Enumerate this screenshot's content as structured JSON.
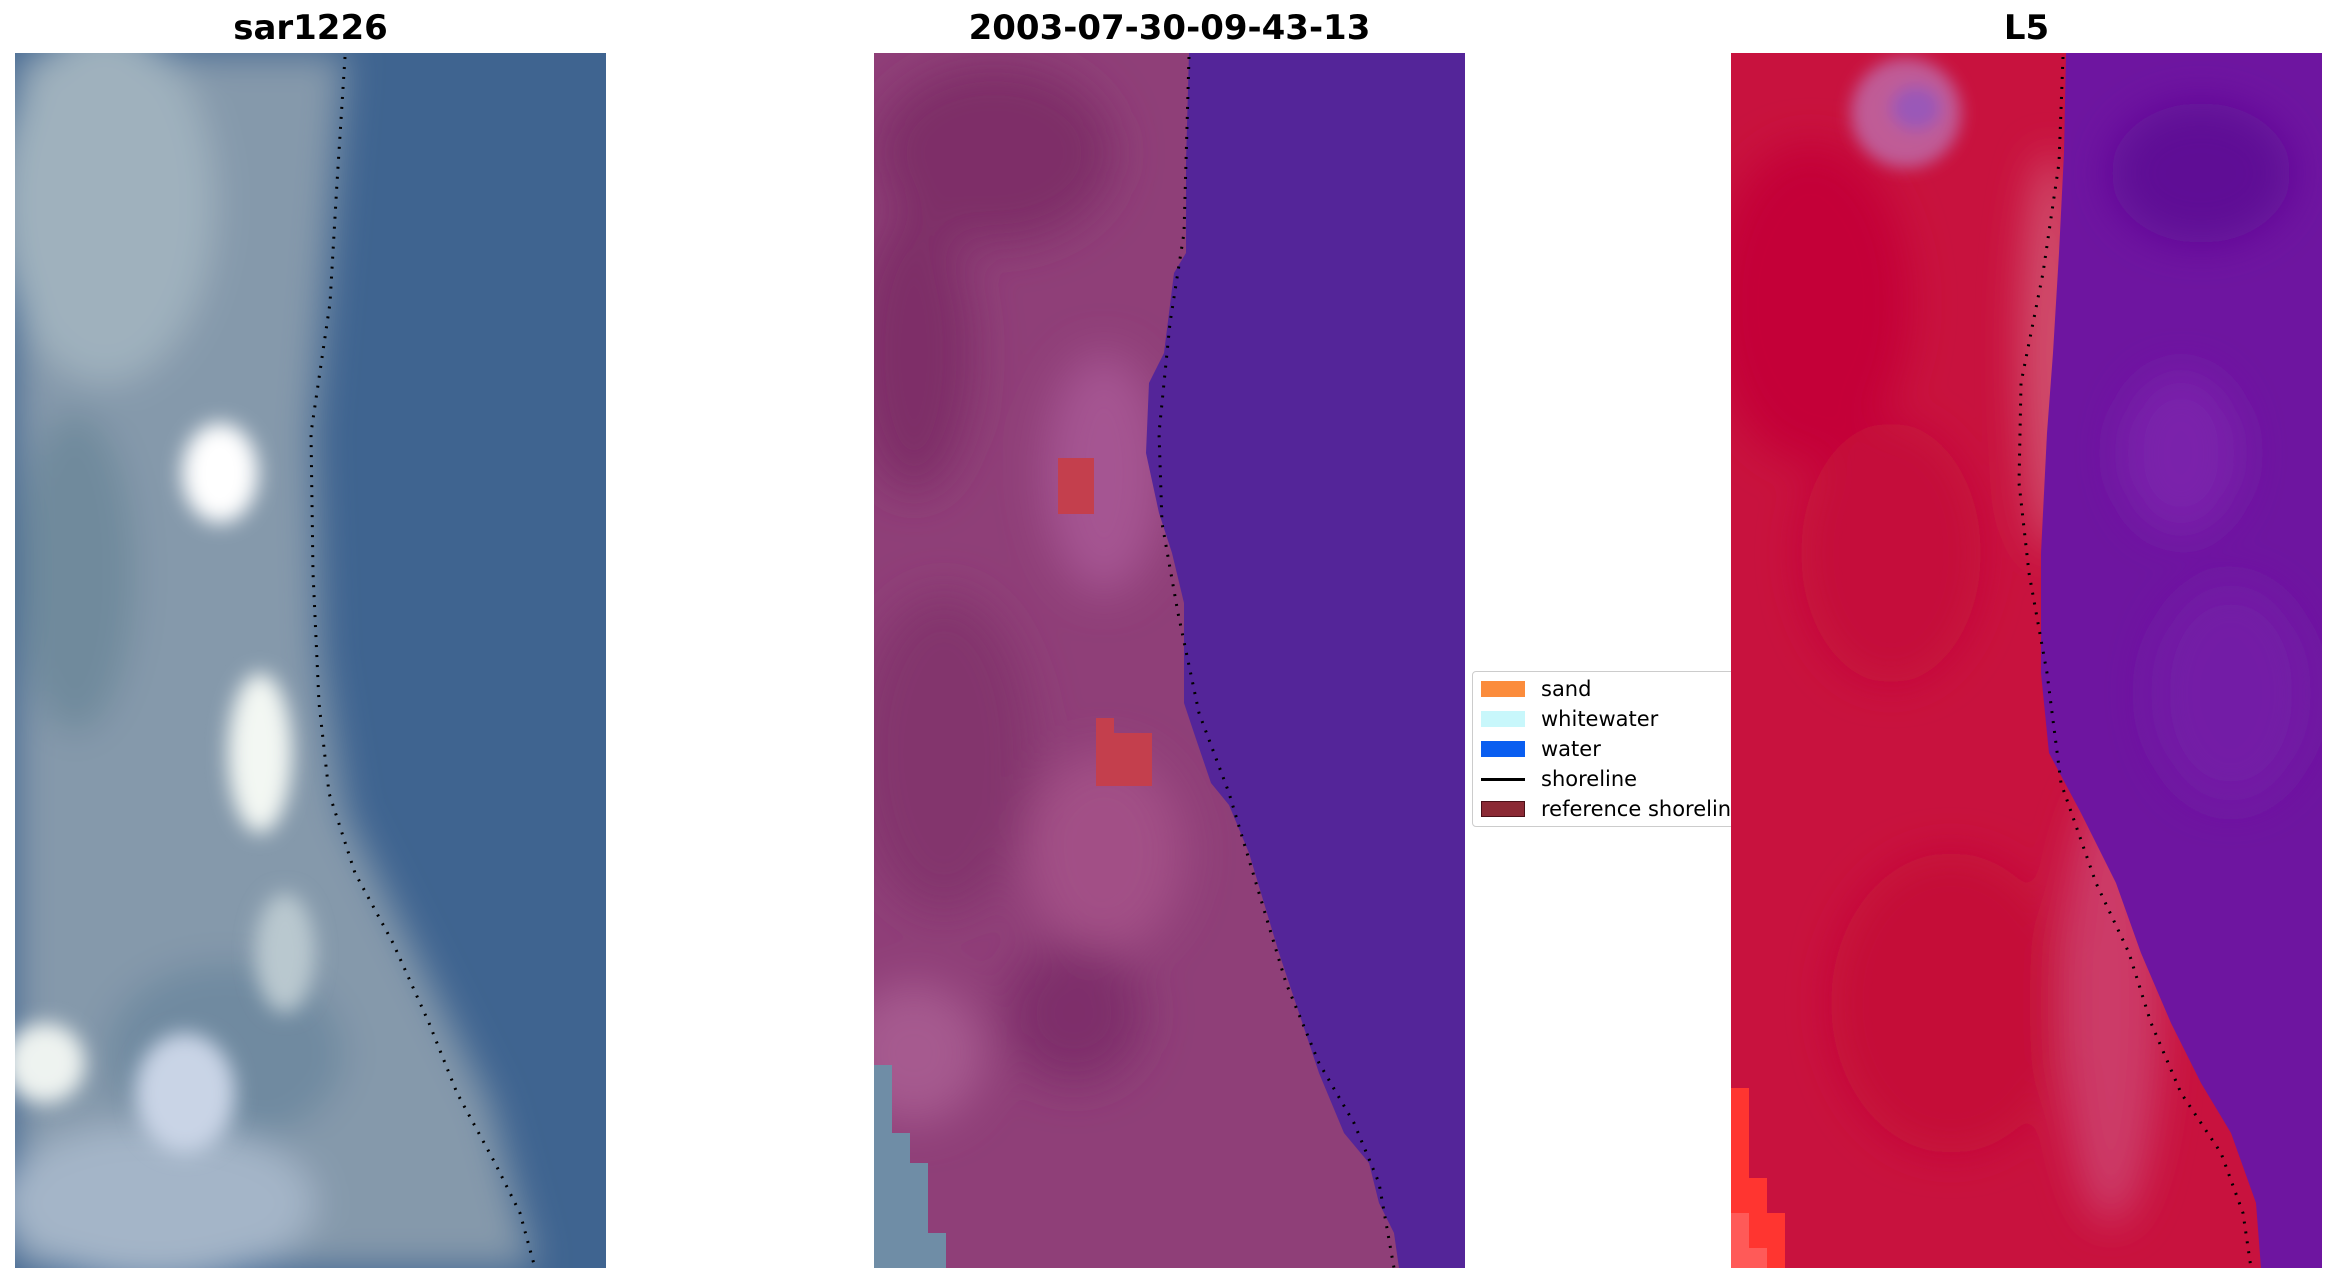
{
  "panels": [
    {
      "title": "sar1226"
    },
    {
      "title": "2003-07-30-09-43-13"
    },
    {
      "title": "L5"
    }
  ],
  "legend": {
    "items": [
      {
        "label": "sand",
        "color": "#fb8c3c",
        "kind": "patch"
      },
      {
        "label": "whitewater",
        "color": "#c8f7fb",
        "kind": "patch"
      },
      {
        "label": "water",
        "color": "#0a5ef0",
        "kind": "patch"
      },
      {
        "label": "shoreline",
        "color": "#000000",
        "kind": "line"
      },
      {
        "label": "reference shoreline",
        "color": "#8b2a35",
        "kind": "patch"
      }
    ]
  },
  "colors": {
    "rgb_land": "#8a9fb0",
    "rgb_water": "#3f6490",
    "class_land": "#8f3f78",
    "class_water": "#542599",
    "class_sand_overlay": "#c43f4d",
    "nir_land": "#c8123e",
    "nir_water": "#6e15a0"
  }
}
